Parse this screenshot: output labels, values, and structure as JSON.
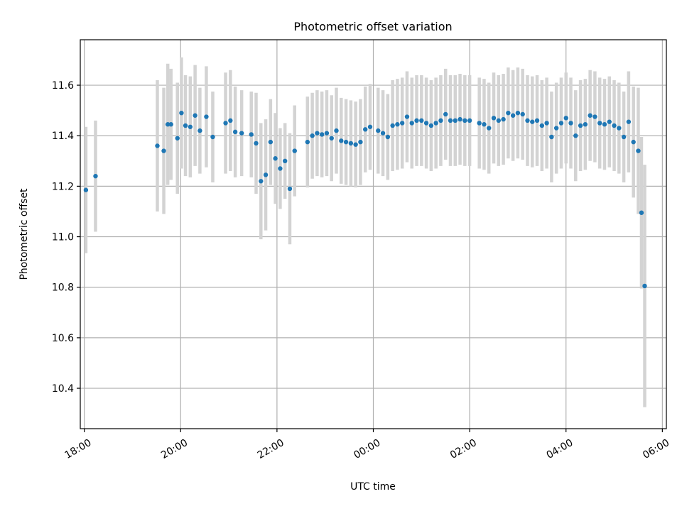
{
  "chart_data": {
    "type": "scatter",
    "title": "Photometric offset variation",
    "xlabel": "UTC time",
    "ylabel": "Photometric offset",
    "xlim": [
      "17:55",
      "06:05"
    ],
    "ylim": [
      10.24,
      11.78
    ],
    "x_ticks": [
      "18:00",
      "20:00",
      "22:00",
      "00:00",
      "02:00",
      "04:00",
      "06:00"
    ],
    "y_ticks": [
      "10.4",
      "10.6",
      "10.8",
      "11.0",
      "11.2",
      "11.4",
      "11.6"
    ],
    "grid": true,
    "colors": {
      "point": "#1f77b4",
      "errorbar": "#d3d3d3",
      "grid": "#b0b0b0"
    },
    "series": [
      {
        "x": [
          "18:02",
          "18:14",
          "19:31",
          "19:39",
          "19:44",
          "19:48",
          "19:56",
          "20:01",
          "20:06",
          "20:12",
          "20:18",
          "20:24",
          "20:32",
          "20:40",
          "20:56",
          "21:02",
          "21:08",
          "21:16",
          "21:28",
          "21:34",
          "21:40",
          "21:46",
          "21:52",
          "21:58",
          "22:04",
          "22:10",
          "22:16",
          "22:22",
          "22:38",
          "22:44",
          "22:50",
          "22:56",
          "23:02",
          "23:08",
          "23:14",
          "23:20",
          "23:26",
          "23:32",
          "23:38",
          "23:44",
          "23:50",
          "23:56",
          "00:06",
          "00:12",
          "00:18",
          "00:24",
          "00:30",
          "00:36",
          "00:42",
          "00:48",
          "00:54",
          "01:00",
          "01:06",
          "01:12",
          "01:18",
          "01:24",
          "01:30",
          "01:36",
          "01:42",
          "01:48",
          "01:54",
          "02:00",
          "02:12",
          "02:18",
          "02:24",
          "02:30",
          "02:36",
          "02:42",
          "02:48",
          "02:54",
          "03:00",
          "03:06",
          "03:12",
          "03:18",
          "03:24",
          "03:30",
          "03:36",
          "03:42",
          "03:48",
          "03:54",
          "04:00",
          "04:06",
          "04:12",
          "04:18",
          "04:24",
          "04:30",
          "04:36",
          "04:42",
          "04:48",
          "04:54",
          "05:00",
          "05:06",
          "05:12",
          "05:18",
          "05:24",
          "05:30",
          "05:34",
          "05:38"
        ],
        "y": [
          11.185,
          11.24,
          11.36,
          11.34,
          11.445,
          11.445,
          11.39,
          11.49,
          11.44,
          11.435,
          11.48,
          11.42,
          11.475,
          11.395,
          11.45,
          11.46,
          11.415,
          11.41,
          11.405,
          11.37,
          11.22,
          11.245,
          11.375,
          11.31,
          11.27,
          11.3,
          11.19,
          11.34,
          11.375,
          11.4,
          11.41,
          11.405,
          11.41,
          11.39,
          11.42,
          11.38,
          11.375,
          11.37,
          11.365,
          11.375,
          11.425,
          11.435,
          11.42,
          11.41,
          11.395,
          11.44,
          11.445,
          11.45,
          11.475,
          11.45,
          11.46,
          11.46,
          11.45,
          11.44,
          11.45,
          11.46,
          11.485,
          11.46,
          11.46,
          11.465,
          11.46,
          11.46,
          11.45,
          11.445,
          11.43,
          11.47,
          11.46,
          11.465,
          11.49,
          11.48,
          11.49,
          11.485,
          11.46,
          11.455,
          11.46,
          11.44,
          11.45,
          11.395,
          11.43,
          11.45,
          11.47,
          11.45,
          11.4,
          11.44,
          11.445,
          11.48,
          11.475,
          11.45,
          11.445,
          11.455,
          11.44,
          11.43,
          11.395,
          11.455,
          11.375,
          11.34,
          11.095,
          10.805
        ],
        "yerr": [
          0.25,
          0.22,
          0.26,
          0.25,
          0.24,
          0.22,
          0.22,
          0.22,
          0.2,
          0.2,
          0.2,
          0.17,
          0.2,
          0.18,
          0.2,
          0.2,
          0.18,
          0.17,
          0.17,
          0.2,
          0.23,
          0.22,
          0.17,
          0.18,
          0.16,
          0.15,
          0.22,
          0.18,
          0.18,
          0.17,
          0.17,
          0.17,
          0.17,
          0.17,
          0.17,
          0.17,
          0.17,
          0.17,
          0.17,
          0.17,
          0.17,
          0.17,
          0.17,
          0.17,
          0.17,
          0.18,
          0.18,
          0.18,
          0.18,
          0.18,
          0.18,
          0.18,
          0.18,
          0.18,
          0.18,
          0.18,
          0.18,
          0.18,
          0.18,
          0.18,
          0.18,
          0.18,
          0.18,
          0.18,
          0.18,
          0.18,
          0.18,
          0.18,
          0.18,
          0.18,
          0.18,
          0.18,
          0.18,
          0.18,
          0.18,
          0.18,
          0.18,
          0.18,
          0.18,
          0.18,
          0.18,
          0.18,
          0.18,
          0.18,
          0.18,
          0.18,
          0.18,
          0.18,
          0.18,
          0.18,
          0.18,
          0.18,
          0.18,
          0.2,
          0.22,
          0.25,
          0.3,
          0.48
        ]
      }
    ]
  }
}
